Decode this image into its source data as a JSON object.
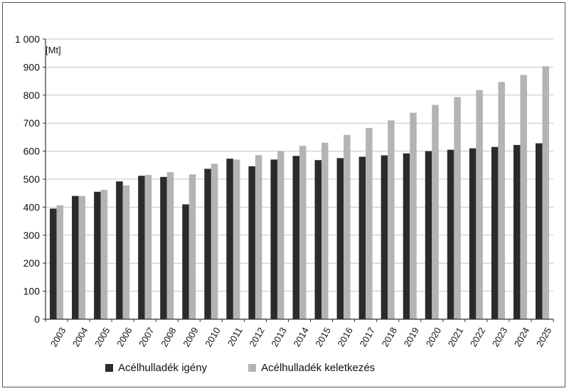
{
  "chart_data": {
    "type": "bar",
    "unit_label": "[Mt]",
    "categories": [
      "2003",
      "2004",
      "2005",
      "2006",
      "2007",
      "2008",
      "2009",
      "2010",
      "2011",
      "2012",
      "2013",
      "2014",
      "2015",
      "2016",
      "2017",
      "2018",
      "2019",
      "2020",
      "2021",
      "2022",
      "2023",
      "2024",
      "2025"
    ],
    "series": [
      {
        "name": "Acélhulladék igény",
        "color": "#2b2b2b",
        "values": [
          395,
          440,
          455,
          492,
          512,
          508,
          410,
          537,
          573,
          546,
          570,
          583,
          568,
          575,
          580,
          585,
          592,
          600,
          605,
          610,
          615,
          622,
          628
        ]
      },
      {
        "name": "Acélhulladék keletkezés",
        "color": "#b4b4b4",
        "values": [
          407,
          440,
          462,
          478,
          515,
          525,
          517,
          555,
          570,
          586,
          600,
          619,
          630,
          658,
          683,
          710,
          737,
          765,
          793,
          818,
          847,
          872,
          903
        ]
      }
    ],
    "ylim": [
      0,
      1000
    ],
    "yticks": [
      0,
      100,
      200,
      300,
      400,
      500,
      600,
      700,
      800,
      900,
      1000
    ],
    "ytick_labels": [
      "0",
      "100",
      "200",
      "300",
      "400",
      "500",
      "600",
      "700",
      "800",
      "900",
      "1 000"
    ],
    "grid": "horizontal",
    "legend_position": "bottom"
  }
}
